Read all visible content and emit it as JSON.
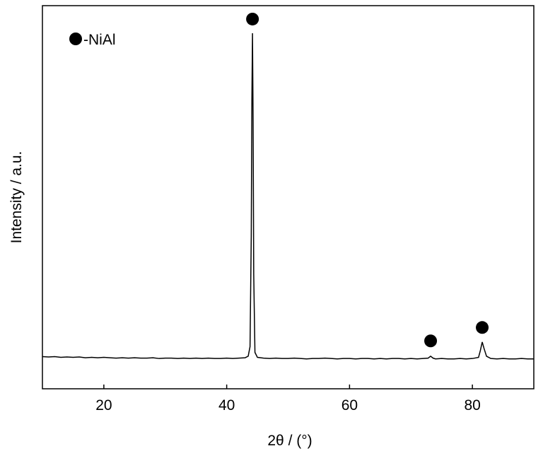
{
  "chart_data": {
    "type": "line",
    "xlabel": "2θ / (°)",
    "ylabel": "Intensity / a.u.",
    "xlim": [
      10,
      90
    ],
    "xticks": [
      20,
      40,
      60,
      80
    ],
    "ylim": [
      0,
      100
    ],
    "yticks": [],
    "series": [
      {
        "color": "#000000",
        "x": [
          10,
          11,
          12,
          13,
          14,
          15,
          16,
          17,
          18,
          19,
          20,
          21,
          22,
          23,
          24,
          25,
          26,
          27,
          28,
          29,
          30,
          31,
          32,
          33,
          34,
          35,
          36,
          37,
          38,
          39,
          40,
          41,
          42,
          43,
          43.5,
          43.8,
          44.0,
          44.1,
          44.2,
          44.3,
          44.4,
          44.6,
          45,
          46,
          47,
          48,
          49,
          50,
          51,
          52,
          53,
          54,
          55,
          56,
          57,
          58,
          59,
          60,
          61,
          62,
          63,
          64,
          65,
          66,
          67,
          68,
          69,
          70,
          71,
          72,
          72.8,
          73.2,
          73.6,
          74,
          75,
          76,
          77,
          78,
          79,
          80,
          81,
          81.3,
          81.6,
          81.9,
          82.3,
          83,
          84,
          85,
          86,
          87,
          88,
          89,
          90
        ],
        "values": [
          8.4,
          8.3,
          8.4,
          8.2,
          8.3,
          8.2,
          8.3,
          8.1,
          8.2,
          8.1,
          8.2,
          8.1,
          8.0,
          8.1,
          8.0,
          8.1,
          8.0,
          8.0,
          8.1,
          7.9,
          8.0,
          8.0,
          7.9,
          8.0,
          7.9,
          8.0,
          7.9,
          8.0,
          7.9,
          7.9,
          8.0,
          7.9,
          8.0,
          8.1,
          8.5,
          11,
          40,
          75,
          92.8,
          70,
          30,
          9.5,
          8.2,
          8.0,
          7.9,
          8.0,
          7.9,
          7.9,
          8.0,
          7.9,
          7.8,
          7.9,
          7.9,
          8.0,
          7.9,
          7.8,
          7.9,
          7.9,
          7.8,
          7.9,
          7.9,
          7.8,
          7.9,
          7.8,
          7.9,
          7.9,
          7.8,
          7.9,
          7.8,
          7.9,
          8.0,
          8.5,
          8.0,
          7.8,
          7.9,
          7.8,
          7.8,
          7.9,
          7.8,
          7.9,
          8.2,
          10,
          12.2,
          10.5,
          8.5,
          7.9,
          7.8,
          7.9,
          7.8,
          7.8,
          7.9,
          7.8,
          7.8
        ]
      },
      {
        "type": "scatter",
        "name": "-NiAl",
        "color": "#000000",
        "x": [
          44.2,
          73.2,
          81.6
        ],
        "values": [
          96.5,
          12.5,
          16
        ]
      }
    ]
  }
}
